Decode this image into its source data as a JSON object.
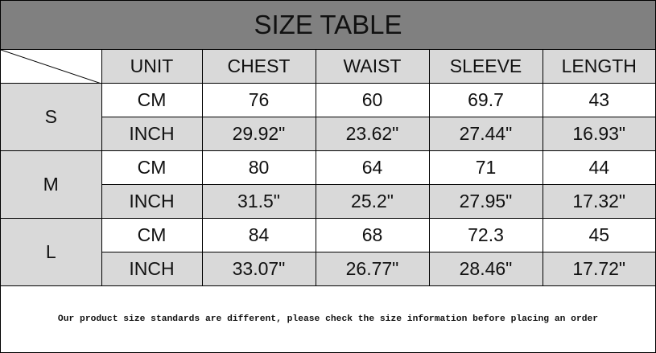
{
  "title": "SIZE TABLE",
  "columns": [
    "UNIT",
    "CHEST",
    "WAIST",
    "SLEEVE",
    "LENGTH"
  ],
  "sizes": [
    {
      "size": "S",
      "rows": [
        {
          "unit": "CM",
          "values": [
            "76",
            "60",
            "69.7",
            "43"
          ]
        },
        {
          "unit": "INCH",
          "values": [
            "29.92\"",
            "23.62\"",
            "27.44\"",
            "16.93\""
          ]
        }
      ]
    },
    {
      "size": "M",
      "rows": [
        {
          "unit": "CM",
          "values": [
            "80",
            "64",
            "71",
            "44"
          ]
        },
        {
          "unit": "INCH",
          "values": [
            "31.5\"",
            "25.2\"",
            "27.95\"",
            "17.32\""
          ]
        }
      ]
    },
    {
      "size": "L",
      "rows": [
        {
          "unit": "CM",
          "values": [
            "84",
            "68",
            "72.3",
            "45"
          ]
        },
        {
          "unit": "INCH",
          "values": [
            "33.07\"",
            "26.77\"",
            "28.46\"",
            "17.72\""
          ]
        }
      ]
    }
  ],
  "footer_note": "Our product size standards are different, please check the size information before placing an order",
  "colors": {
    "title_bg": "#808080",
    "cell_gray": "#d9d9d9",
    "cell_white": "#ffffff"
  }
}
